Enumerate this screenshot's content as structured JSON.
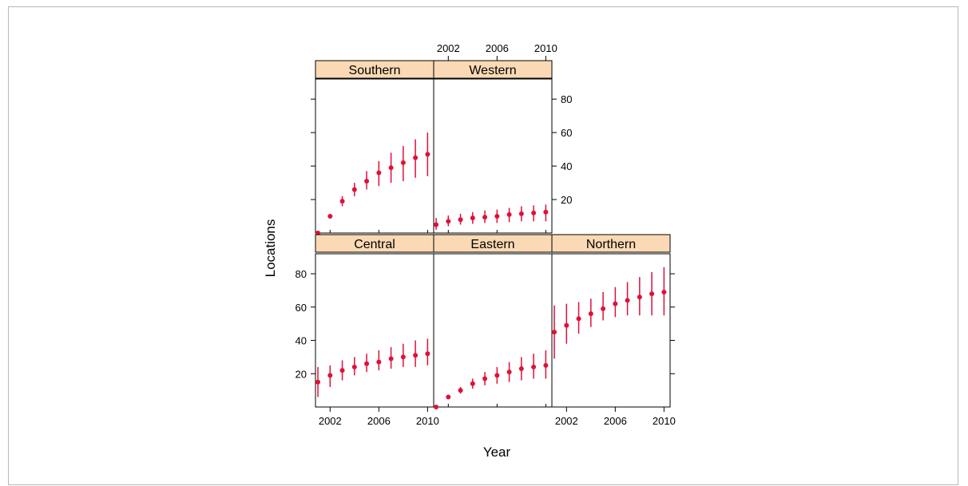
{
  "chart_data": {
    "type": "trellis-errorbar",
    "xlabel": "Year",
    "ylabel": "Locations",
    "xlim": [
      2000.8,
      2010.5
    ],
    "ylim": [
      0,
      92
    ],
    "x_ticks": [
      2002,
      2006,
      2010
    ],
    "y_ticks": [
      20,
      40,
      60,
      80
    ],
    "point_color": "#e0103a",
    "strip_color": "#fad9b4",
    "years": [
      2001,
      2002,
      2003,
      2004,
      2005,
      2006,
      2007,
      2008,
      2009,
      2010
    ],
    "panels": [
      {
        "name": "Southern",
        "estimate": [
          0,
          10,
          19,
          26,
          31,
          36,
          39,
          42,
          45,
          47
        ],
        "lower": [
          0,
          9,
          16,
          22,
          26,
          28,
          30,
          31,
          33,
          34
        ],
        "upper": [
          0,
          11,
          22,
          30,
          37,
          43,
          48,
          52,
          56,
          60
        ]
      },
      {
        "name": "Western",
        "estimate": [
          5,
          7,
          8,
          9,
          9.5,
          10,
          11,
          11.5,
          12,
          12.5
        ],
        "lower": [
          2,
          4,
          5,
          5.5,
          6,
          6,
          6.5,
          7,
          7,
          7
        ],
        "upper": [
          9,
          10.5,
          11.5,
          12.5,
          13.5,
          14,
          15,
          16,
          16.5,
          17
        ]
      },
      {
        "name": "Central",
        "estimate": [
          15,
          19,
          22,
          24,
          26,
          27,
          29,
          30,
          31,
          32
        ],
        "lower": [
          6,
          12,
          16,
          19,
          21,
          22,
          23,
          24,
          24,
          25
        ],
        "upper": [
          24,
          25,
          28,
          30,
          32,
          34,
          36,
          38,
          40,
          41
        ]
      },
      {
        "name": "Eastern",
        "estimate": [
          0,
          6,
          10,
          14,
          17,
          19,
          21,
          23,
          24,
          25
        ],
        "lower": [
          0,
          5,
          8,
          11,
          13,
          14,
          15,
          16,
          17,
          17
        ],
        "upper": [
          0,
          7,
          12,
          17,
          21,
          24,
          27,
          30,
          32,
          34
        ]
      },
      {
        "name": "Northern",
        "estimate": [
          45,
          49,
          53,
          56,
          59,
          62,
          64,
          66,
          68,
          69
        ],
        "lower": [
          29,
          38,
          44,
          48,
          52,
          54,
          55,
          55,
          55,
          55
        ],
        "upper": [
          61,
          62,
          63,
          65,
          69,
          72,
          75,
          78,
          81,
          84
        ]
      }
    ]
  }
}
